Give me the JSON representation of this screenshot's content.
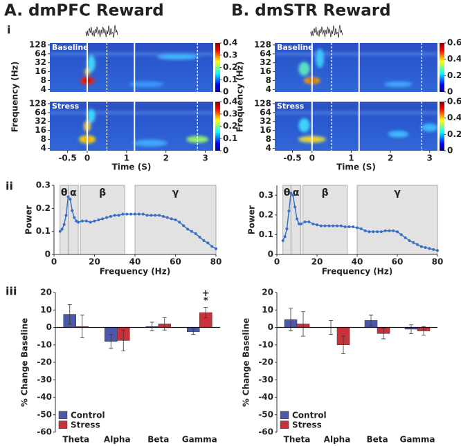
{
  "figure": {
    "titles": [
      "A.  dmPFC Reward",
      "B.  dmSTR Reward"
    ],
    "rows": [
      "i",
      "ii",
      "iii"
    ]
  },
  "chart_data": [
    {
      "type": "heatmap",
      "label": "Baseline",
      "ylabel": "Frequency (Hz)",
      "log_y": true,
      "xlim": [
        -0.95,
        3.2
      ],
      "ylim": [
        3.3,
        150
      ],
      "yticks": [
        4,
        8,
        16,
        32,
        64,
        128
      ],
      "clim": [
        0,
        0.4
      ],
      "cticks": [
        0,
        0.1,
        0.2,
        0.3,
        0.4
      ],
      "vlines": [
        0,
        0.5,
        1.2,
        2.8
      ],
      "vline_styles": [
        "solid",
        "dashed",
        "solid",
        "dashed"
      ]
    },
    {
      "type": "heatmap",
      "label": "Stress",
      "xlabel": "Time (S)",
      "log_y": true,
      "xlim": [
        -0.95,
        3.2
      ],
      "ylim": [
        3.3,
        150
      ],
      "xticks": [
        -0.5,
        0,
        1,
        2,
        3
      ],
      "yticks": [
        4,
        8,
        16,
        32,
        64,
        128
      ],
      "clim": [
        0,
        0.4
      ],
      "cticks": [
        0,
        0.1,
        0.2,
        0.3,
        0.4
      ],
      "vlines": [
        0,
        0.5,
        1.2,
        2.8
      ],
      "vline_styles": [
        "solid",
        "dashed",
        "solid",
        "dashed"
      ]
    },
    {
      "type": "line",
      "xlabel": "Frequency (Hz)",
      "ylabel": "Power",
      "color": "#3a6fc4",
      "xlim": [
        0,
        80
      ],
      "ylim": [
        0,
        0.3
      ],
      "xticks": [
        0,
        20,
        40,
        60,
        80
      ],
      "yticks": [
        0,
        0.1,
        0.2,
        0.3
      ],
      "bands": [
        {
          "label": "θ",
          "range": [
            3,
            7
          ]
        },
        {
          "label": "α",
          "range": [
            7,
            12
          ]
        },
        {
          "label": "β",
          "range": [
            13,
            35
          ]
        },
        {
          "label": "γ",
          "range": [
            40,
            80
          ]
        }
      ],
      "x": [
        3,
        4,
        5,
        6,
        7,
        8,
        9,
        10,
        11,
        12,
        14,
        16,
        18,
        20,
        22,
        24,
        26,
        28,
        30,
        32,
        34,
        36,
        38,
        40,
        42,
        44,
        46,
        48,
        50,
        52,
        54,
        56,
        58,
        60,
        62,
        64,
        66,
        68,
        70,
        72,
        74,
        76,
        78,
        80
      ],
      "values": [
        0.1,
        0.11,
        0.13,
        0.17,
        0.25,
        0.24,
        0.19,
        0.16,
        0.145,
        0.14,
        0.145,
        0.145,
        0.14,
        0.145,
        0.15,
        0.155,
        0.16,
        0.165,
        0.17,
        0.17,
        0.175,
        0.175,
        0.175,
        0.175,
        0.175,
        0.175,
        0.17,
        0.17,
        0.17,
        0.17,
        0.165,
        0.16,
        0.155,
        0.15,
        0.14,
        0.125,
        0.11,
        0.1,
        0.09,
        0.075,
        0.06,
        0.05,
        0.035,
        0.025
      ]
    },
    {
      "type": "bar",
      "ylabel": "% Change Baseline",
      "categories": [
        "Theta",
        "Alpha",
        "Beta",
        "Gamma"
      ],
      "ylim": [
        -60,
        20
      ],
      "yticks": [
        -60,
        -50,
        -40,
        -30,
        -20,
        -10,
        0,
        10,
        20
      ],
      "legend": "lower-left",
      "series": [
        {
          "name": "Control",
          "color": "#4d58a8",
          "values": [
            7.5,
            -8,
            0.5,
            -2.5
          ],
          "errors": [
            5.5,
            4,
            2.5,
            1.5
          ]
        },
        {
          "name": "Stress",
          "color": "#c8333b",
          "values": [
            0.5,
            -7.5,
            2,
            8.5
          ],
          "errors": [
            6.5,
            6,
            3.5,
            3
          ]
        }
      ],
      "significance": [
        "+",
        "*"
      ]
    },
    {
      "type": "heatmap",
      "label": "Baseline",
      "ylabel": "Frequency (Hz)",
      "log_y": true,
      "xlim": [
        -0.95,
        3.2
      ],
      "ylim": [
        3.3,
        150
      ],
      "yticks": [
        4,
        8,
        16,
        32,
        64,
        128
      ],
      "clim": [
        0,
        0.6
      ],
      "cticks": [
        0,
        0.2,
        0.4,
        0.6
      ],
      "vlines": [
        0,
        0.5,
        1.2,
        2.8
      ],
      "vline_styles": [
        "solid",
        "dashed",
        "solid",
        "dashed"
      ]
    },
    {
      "type": "heatmap",
      "label": "Stress",
      "xlabel": "Time (S)",
      "log_y": true,
      "xlim": [
        -0.95,
        3.2
      ],
      "ylim": [
        3.3,
        150
      ],
      "xticks": [
        -0.5,
        0,
        1,
        2,
        3
      ],
      "yticks": [
        4,
        8,
        16,
        32,
        64,
        128
      ],
      "clim": [
        0,
        0.6
      ],
      "cticks": [
        0,
        0.2,
        0.4,
        0.6
      ],
      "vlines": [
        0,
        0.5,
        1.2,
        2.8
      ],
      "vline_styles": [
        "solid",
        "dashed",
        "solid",
        "dashed"
      ]
    },
    {
      "type": "line",
      "xlabel": "Frequency (Hz)",
      "ylabel": "Power",
      "color": "#3a6fc4",
      "xlim": [
        0,
        80
      ],
      "ylim": [
        0,
        0.35
      ],
      "xticks": [
        0,
        20,
        40,
        60,
        80
      ],
      "yticks": [
        0,
        0.1,
        0.2,
        0.3
      ],
      "bands": [
        {
          "label": "θ",
          "range": [
            3,
            7
          ]
        },
        {
          "label": "α",
          "range": [
            7,
            12
          ]
        },
        {
          "label": "β",
          "range": [
            13,
            35
          ]
        },
        {
          "label": "γ",
          "range": [
            40,
            80
          ]
        }
      ],
      "x": [
        3,
        4,
        5,
        6,
        7,
        8,
        9,
        10,
        11,
        12,
        14,
        16,
        18,
        20,
        22,
        24,
        26,
        28,
        30,
        32,
        34,
        36,
        38,
        40,
        42,
        44,
        46,
        48,
        50,
        52,
        54,
        56,
        58,
        60,
        62,
        64,
        66,
        68,
        70,
        72,
        74,
        76,
        78,
        80
      ],
      "values": [
        0.07,
        0.09,
        0.13,
        0.22,
        0.31,
        0.3,
        0.24,
        0.18,
        0.155,
        0.155,
        0.165,
        0.165,
        0.155,
        0.15,
        0.145,
        0.145,
        0.145,
        0.145,
        0.145,
        0.145,
        0.14,
        0.14,
        0.14,
        0.135,
        0.13,
        0.12,
        0.115,
        0.115,
        0.115,
        0.115,
        0.12,
        0.12,
        0.12,
        0.115,
        0.1,
        0.085,
        0.07,
        0.06,
        0.05,
        0.04,
        0.035,
        0.03,
        0.025,
        0.02
      ]
    },
    {
      "type": "bar",
      "ylabel": "% Change Baseline",
      "categories": [
        "Theta",
        "Alpha",
        "Beta",
        "Gamma"
      ],
      "ylim": [
        -60,
        20
      ],
      "yticks": [
        -60,
        -50,
        -40,
        -30,
        -20,
        -10,
        0,
        10,
        20
      ],
      "legend": "lower-left",
      "series": [
        {
          "name": "Control",
          "color": "#4d58a8",
          "values": [
            4.5,
            0,
            4,
            -1
          ],
          "errors": [
            6.5,
            4,
            3,
            2.5
          ]
        },
        {
          "name": "Stress",
          "color": "#c8333b",
          "values": [
            2,
            -10,
            -3.5,
            -2
          ],
          "errors": [
            7,
            5,
            3,
            2.5
          ]
        }
      ]
    }
  ]
}
